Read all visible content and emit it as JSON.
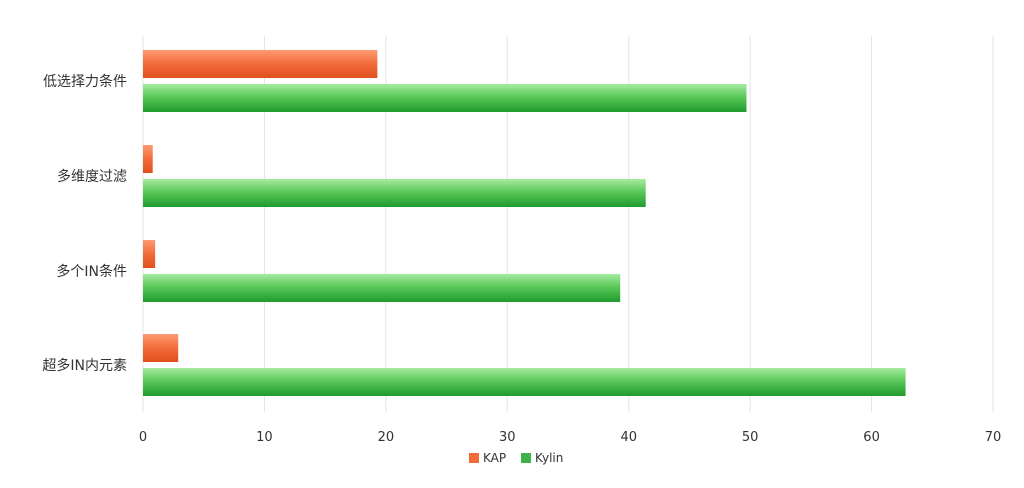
{
  "chart_data": {
    "type": "bar",
    "orientation": "horizontal",
    "categories": [
      "低选择力条件",
      "多维度过滤",
      "多个IN条件",
      "超多IN内元素"
    ],
    "series": [
      {
        "name": "KAP",
        "values": [
          19.3,
          0.8,
          1.0,
          2.9
        ],
        "color": "#f26b3a"
      },
      {
        "name": "Kylin",
        "values": [
          49.7,
          41.4,
          39.3,
          62.8
        ],
        "color": "#3fb24b"
      }
    ],
    "xlim": [
      0,
      70
    ],
    "xticks": [
      "0",
      "10",
      "20",
      "30",
      "40",
      "50",
      "60",
      "70"
    ],
    "grid": true,
    "legend_position": "bottom-center"
  }
}
